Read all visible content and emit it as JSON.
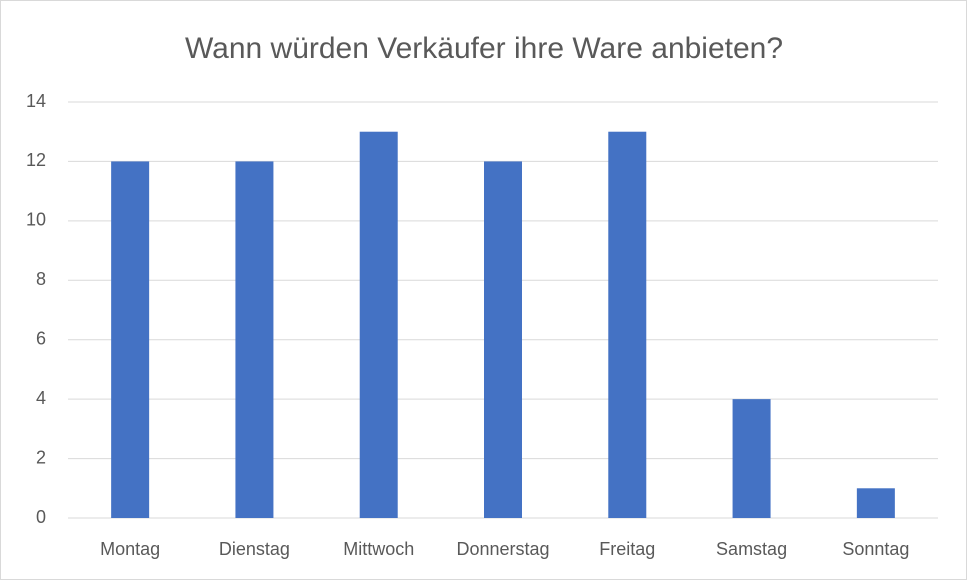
{
  "chart_data": {
    "type": "bar",
    "title": "Wann würden Verkäufer ihre Ware anbieten?",
    "categories": [
      "Montag",
      "Dienstag",
      "Mittwoch",
      "Donnerstag",
      "Freitag",
      "Samstag",
      "Sonntag"
    ],
    "values": [
      12,
      12,
      13,
      12,
      13,
      4,
      1
    ],
    "color": "#4472c4",
    "ylim": [
      0,
      14
    ],
    "yticks": [
      0,
      2,
      4,
      6,
      8,
      10,
      12,
      14
    ],
    "grid": true
  }
}
